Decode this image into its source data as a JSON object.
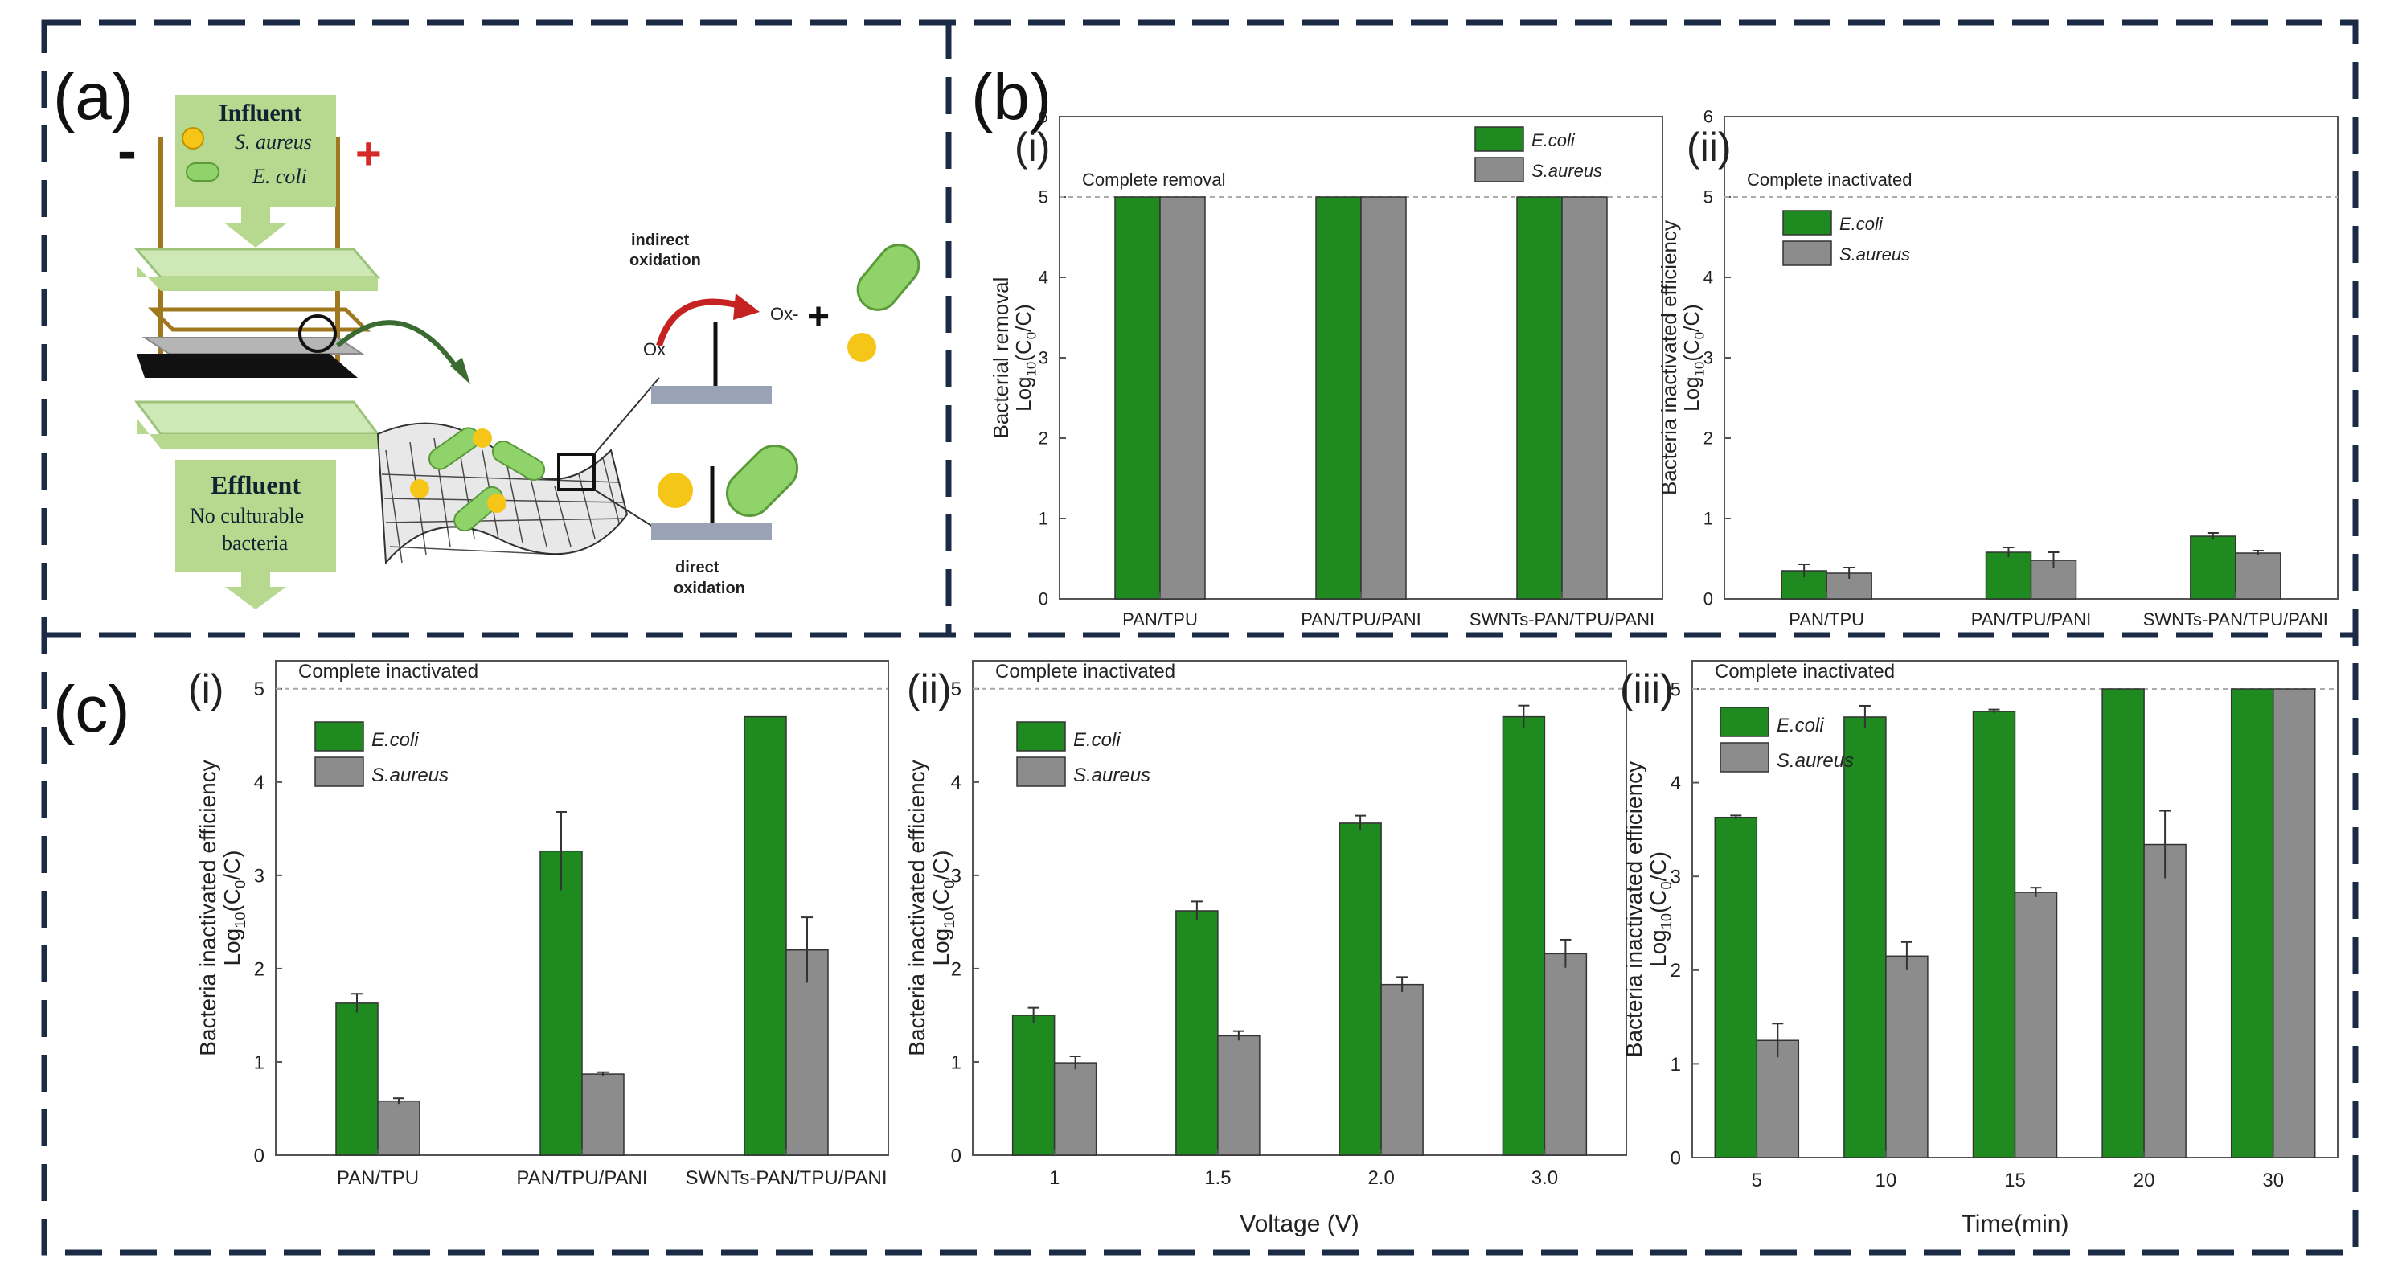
{
  "colors": {
    "ecoli": "#1f8a1f",
    "saureus": "#8c8c8c",
    "frame": "#1b2b45",
    "bacteria_green": "#8fd36a",
    "bacteria_yellow": "#f5c518",
    "arrow": "#3a6b30",
    "red": "#d62828"
  },
  "panel_a": {
    "label": "(a)",
    "influent": "Influent",
    "s_aureus": "S. aureus",
    "e_coli": "E. coli",
    "effluent": "Effluent",
    "no_culturable_line1": "No culturable",
    "no_culturable_line2": "bacteria",
    "minus": "-",
    "plus": "+",
    "indirect_line1": "indirect",
    "indirect_line2": "oxidation",
    "direct_line1": "direct",
    "direct_line2": "oxidation",
    "ox": "Ox",
    "ox_minus": "Ox-",
    "plus_sign": "+"
  },
  "panel_b": {
    "label": "(b)"
  },
  "panel_c": {
    "label": "(c)"
  },
  "chart_data": [
    {
      "id": "b-i",
      "sublabel": "(i)",
      "type": "bar",
      "categories": [
        "PAN/TPU",
        "PAN/TPU/PANI",
        "SWNTs-PAN/TPU/PANI"
      ],
      "series": [
        {
          "name": "E.coli",
          "values": [
            5,
            5,
            5
          ],
          "errors": [
            0,
            0,
            0
          ]
        },
        {
          "name": "S.aureus",
          "values": [
            5,
            5,
            5
          ],
          "errors": [
            0,
            0,
            0
          ]
        }
      ],
      "ylabel_line1": "Bacterial removal",
      "ylabel_line2": "Log10(C0/C)",
      "xlabel": "",
      "ylim": [
        0,
        6
      ],
      "yticks": [
        "0",
        "1",
        "2",
        "3",
        "4",
        "5",
        "6"
      ],
      "reference_line": 5,
      "annotation": "Complete removal"
    },
    {
      "id": "b-ii",
      "sublabel": "(ii)",
      "type": "bar",
      "categories": [
        "PAN/TPU",
        "PAN/TPU/PANI",
        "SWNTs-PAN/TPU/PANI"
      ],
      "series": [
        {
          "name": "E.coli",
          "values": [
            0.35,
            0.58,
            0.78
          ],
          "errors": [
            0.08,
            0.06,
            0.04
          ]
        },
        {
          "name": "S.aureus",
          "values": [
            0.32,
            0.48,
            0.57
          ],
          "errors": [
            0.07,
            0.1,
            0.03
          ]
        }
      ],
      "ylabel_line1": "Bacteria inactivated efficiency",
      "ylabel_line2": "Log10(C0/C)",
      "xlabel": "",
      "ylim": [
        0,
        6
      ],
      "yticks": [
        "0",
        "1",
        "2",
        "3",
        "4",
        "5",
        "6"
      ],
      "reference_line": 5,
      "annotation": "Complete inactivated"
    },
    {
      "id": "c-i",
      "sublabel": "(i)",
      "type": "bar",
      "categories": [
        "PAN/TPU",
        "PAN/TPU/PANI",
        "SWNTs-PAN/TPU/PANI"
      ],
      "series": [
        {
          "name": "E.coli",
          "values": [
            1.63,
            3.26,
            4.7
          ],
          "errors": [
            0.1,
            0.42,
            0
          ]
        },
        {
          "name": "S.aureus",
          "values": [
            0.58,
            0.87,
            2.2
          ],
          "errors": [
            0.03,
            0.02,
            0.35
          ]
        }
      ],
      "ylabel_line1": "Bacteria inactivated efficiency",
      "ylabel_line2": "Log10(C0/C)",
      "xlabel": "",
      "ylim": [
        0,
        5.3
      ],
      "yticks": [
        "0",
        "1",
        "2",
        "3",
        "4",
        "5"
      ],
      "reference_line": 5,
      "annotation": "Complete inactivated"
    },
    {
      "id": "c-ii",
      "sublabel": "(ii)",
      "type": "bar",
      "categories": [
        "1",
        "1.5",
        "2.0",
        "3.0"
      ],
      "series": [
        {
          "name": "E.coli",
          "values": [
            1.5,
            2.62,
            3.56,
            4.7
          ],
          "errors": [
            0.08,
            0.1,
            0.08,
            0.12
          ]
        },
        {
          "name": "S.aureus",
          "values": [
            0.99,
            1.28,
            1.83,
            2.16
          ],
          "errors": [
            0.07,
            0.05,
            0.08,
            0.15
          ]
        }
      ],
      "ylabel_line1": "Bacteria inactivated efficiency",
      "ylabel_line2": "Log10(C0/C)",
      "xlabel": "Voltage (V)",
      "ylim": [
        0,
        5.3
      ],
      "yticks": [
        "0",
        "1",
        "2",
        "3",
        "4",
        "5"
      ],
      "reference_line": 5,
      "annotation": "Complete inactivated"
    },
    {
      "id": "c-iii",
      "sublabel": "(iii)",
      "type": "bar",
      "categories": [
        "5",
        "10",
        "15",
        "20",
        "30"
      ],
      "series": [
        {
          "name": "E.coli",
          "values": [
            3.63,
            4.7,
            4.76,
            5,
            5
          ],
          "errors": [
            0.02,
            0.12,
            0.02,
            0,
            0
          ]
        },
        {
          "name": "S.aureus",
          "values": [
            1.25,
            2.15,
            2.83,
            3.34,
            5
          ],
          "errors": [
            0.18,
            0.15,
            0.05,
            0.36,
            0
          ]
        }
      ],
      "ylabel_line1": "Bacteria inactivated efficiency",
      "ylabel_line2": "Log10(C0/C)",
      "xlabel": "Time(min)",
      "ylim": [
        0,
        5.3
      ],
      "yticks": [
        "0",
        "1",
        "2",
        "3",
        "4",
        "5"
      ],
      "reference_line": 5,
      "annotation": "Complete inactivated"
    }
  ]
}
